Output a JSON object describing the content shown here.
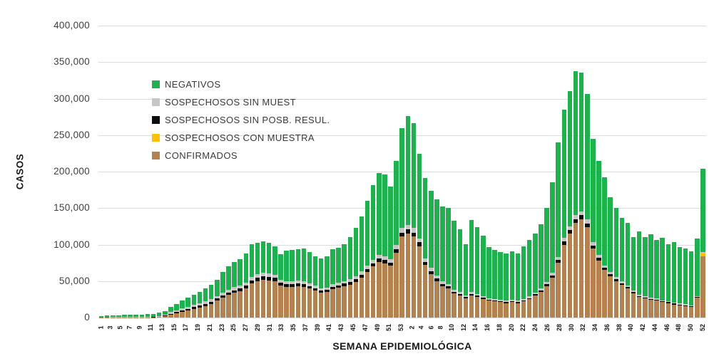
{
  "chart_data": {
    "type": "bar",
    "stacked": true,
    "title": "",
    "xlabel": "SEMANA EPIDEMIOLÓGICA",
    "ylabel": "CASOS",
    "ylim": [
      0,
      400000
    ],
    "grid": true,
    "legend_position": "upper-left-inside",
    "yticks": [
      {
        "label": "0",
        "value": 0
      },
      {
        "label": "50,000",
        "value": 50000
      },
      {
        "label": "100,000",
        "value": 100000
      },
      {
        "label": "150,000",
        "value": 150000
      },
      {
        "label": "200,000",
        "value": 200000
      },
      {
        "label": "250,000",
        "value": 250000
      },
      {
        "label": "300,000",
        "value": 300000
      },
      {
        "label": "350,000",
        "value": 350000
      },
      {
        "label": "400,000",
        "value": 400000
      }
    ],
    "categories": [
      "1",
      "",
      "3",
      "",
      "5",
      "",
      "7",
      "",
      "9",
      "",
      "11",
      "",
      "13",
      "",
      "15",
      "",
      "17",
      "",
      "19",
      "",
      "21",
      "",
      "23",
      "",
      "25",
      "",
      "27",
      "",
      "29",
      "",
      "31",
      "",
      "33",
      "",
      "35",
      "",
      "37",
      "",
      "39",
      "",
      "41",
      "",
      "43",
      "",
      "45",
      "",
      "47",
      "",
      "49",
      "",
      "51",
      "",
      "53",
      "",
      "2",
      "",
      "4",
      "",
      "6",
      "",
      "8",
      "",
      "10",
      "",
      "12",
      "",
      "14",
      "",
      "16",
      "",
      "18",
      "",
      "20",
      "",
      "22",
      "",
      "24",
      "",
      "26",
      "",
      "28",
      "",
      "30",
      "",
      "32",
      "",
      "34",
      "",
      "36",
      "",
      "38",
      "",
      "40",
      "",
      "42",
      "",
      "44",
      "",
      "46",
      "",
      "48",
      "",
      "50",
      "",
      "52"
    ],
    "series": [
      {
        "name": "CONFIRMADOS",
        "color": "#b4824e",
        "values": [
          100,
          100,
          200,
          200,
          200,
          200,
          200,
          300,
          300,
          400,
          600,
          2000,
          4000,
          6000,
          8000,
          10000,
          12000,
          14000,
          16000,
          19000,
          23000,
          27000,
          31000,
          34000,
          36000,
          40000,
          47000,
          50000,
          52000,
          51000,
          50000,
          44000,
          42000,
          42000,
          43000,
          42000,
          40000,
          37000,
          34000,
          35000,
          39000,
          41000,
          43000,
          45000,
          49000,
          55000,
          62000,
          70000,
          76000,
          74000,
          71000,
          89000,
          111000,
          115000,
          111000,
          98000,
          72000,
          60000,
          50000,
          43000,
          40000,
          33000,
          30000,
          26000,
          30000,
          28000,
          25000,
          23000,
          22000,
          21000,
          20000,
          21000,
          20000,
          22000,
          25000,
          30000,
          35000,
          43000,
          55000,
          75000,
          100000,
          115000,
          130000,
          135000,
          124000,
          95000,
          78000,
          65000,
          57000,
          50000,
          45000,
          40000,
          33000,
          28000,
          26000,
          24000,
          23000,
          21000,
          20000,
          18000,
          17000,
          16000,
          15000,
          27000,
          84000
        ]
      },
      {
        "name": "SOSPECHOSOS CON MUESTRA",
        "color": "#ffc000",
        "values": [
          0,
          0,
          0,
          0,
          0,
          0,
          0,
          0,
          0,
          0,
          0,
          0,
          0,
          0,
          0,
          0,
          0,
          0,
          0,
          0,
          0,
          0,
          0,
          0,
          0,
          0,
          0,
          0,
          0,
          0,
          0,
          0,
          0,
          0,
          0,
          0,
          0,
          0,
          0,
          0,
          0,
          0,
          0,
          0,
          0,
          0,
          0,
          0,
          0,
          0,
          0,
          0,
          0,
          0,
          0,
          0,
          0,
          0,
          0,
          0,
          0,
          0,
          0,
          0,
          0,
          0,
          0,
          0,
          0,
          0,
          0,
          0,
          0,
          0,
          0,
          0,
          0,
          0,
          0,
          0,
          0,
          0,
          0,
          0,
          0,
          0,
          0,
          0,
          0,
          0,
          0,
          0,
          0,
          0,
          0,
          0,
          0,
          0,
          0,
          0,
          0,
          0,
          0,
          0,
          3500
        ]
      },
      {
        "name": "SOSPECHOSOS SIN POSB. RESUL.",
        "color": "#0d0d0d",
        "values": [
          100,
          100,
          100,
          100,
          100,
          100,
          100,
          100,
          100,
          200,
          200,
          500,
          1200,
          1500,
          1800,
          2000,
          2200,
          2400,
          2600,
          2800,
          3000,
          3200,
          3400,
          3500,
          3600,
          3800,
          4200,
          4300,
          4400,
          4300,
          4200,
          3800,
          3700,
          3700,
          3700,
          3600,
          3400,
          3200,
          3000,
          3000,
          3200,
          3300,
          3400,
          3500,
          3700,
          3900,
          4200,
          4500,
          4700,
          4600,
          4400,
          5000,
          5500,
          5600,
          5500,
          5000,
          4300,
          3800,
          3400,
          3000,
          2900,
          2500,
          2300,
          2000,
          2300,
          2100,
          1900,
          1700,
          1600,
          1500,
          1400,
          1500,
          1400,
          1600,
          1800,
          2000,
          2200,
          2600,
          3000,
          3600,
          4200,
          4600,
          5000,
          5100,
          4800,
          4000,
          3500,
          3000,
          2700,
          2400,
          2200,
          2000,
          1800,
          1600,
          1500,
          1400,
          1300,
          1200,
          1200,
          1100,
          1000,
          1000,
          900,
          1200,
          800
        ]
      },
      {
        "name": "SOSPECHOSOS SIN MUEST",
        "color": "#c6c6c6",
        "values": [
          300,
          300,
          300,
          300,
          400,
          400,
          400,
          400,
          500,
          500,
          700,
          1000,
          2300,
          2500,
          2700,
          3000,
          3200,
          3300,
          3400,
          3500,
          3600,
          3800,
          4000,
          4100,
          4200,
          4400,
          4800,
          4900,
          5000,
          4900,
          4800,
          4300,
          4200,
          4200,
          4200,
          4100,
          3900,
          3600,
          3400,
          3400,
          3600,
          3700,
          3800,
          3900,
          4100,
          4300,
          4600,
          5000,
          5200,
          5100,
          4900,
          5500,
          6000,
          6100,
          6000,
          5500,
          4700,
          4200,
          3800,
          3400,
          3300,
          2900,
          2700,
          2400,
          2700,
          2500,
          2300,
          2100,
          2000,
          1900,
          1800,
          1900,
          1800,
          2000,
          2200,
          2400,
          2600,
          3000,
          3500,
          4100,
          4800,
          5200,
          5600,
          5700,
          5400,
          4500,
          4000,
          3500,
          3100,
          2800,
          2600,
          2400,
          2200,
          2000,
          1900,
          1800,
          1700,
          1600,
          1500,
          1400,
          1300,
          1200,
          1100,
          1500,
          1700
        ]
      },
      {
        "name": "NEGATIVOS",
        "color": "#1fb14e",
        "values": [
          1500,
          2000,
          2400,
          2400,
          2800,
          2800,
          2800,
          3200,
          3600,
          3900,
          5000,
          5500,
          7500,
          9000,
          10500,
          12000,
          13600,
          15300,
          18000,
          19700,
          22400,
          28000,
          31600,
          34400,
          36200,
          39800,
          45000,
          42800,
          42600,
          41800,
          39000,
          34900,
          42100,
          43100,
          43100,
          45300,
          42700,
          40200,
          40600,
          42600,
          48200,
          48000,
          50800,
          57600,
          66200,
          75800,
          89200,
          101500,
          112100,
          112300,
          99700,
          115500,
          137500,
          149300,
          143500,
          115500,
          110000,
          106000,
          104800,
          102600,
          103800,
          94600,
          86000,
          70600,
          99000,
          91400,
          82800,
          70200,
          67400,
          65600,
          64800,
          66600,
          64800,
          72400,
          77000,
          80600,
          88200,
          101400,
          123500,
          157300,
          176000,
          185200,
          197400,
          190200,
          171800,
          141500,
          129500,
          120500,
          102200,
          94800,
          87200,
          85600,
          73000,
          86400,
          80600,
          86800,
          80000,
          85200,
          78300,
          82500,
          77700,
          76800,
          74000,
          78300,
          114000
        ]
      }
    ],
    "legend": [
      {
        "label": "NEGATIVOS",
        "color": "#1fb14e"
      },
      {
        "label": "SOSPECHOSOS SIN MUEST",
        "color": "#c6c6c6"
      },
      {
        "label": "SOSPECHOSOS SIN POSB. RESUL.",
        "color": "#0d0d0d"
      },
      {
        "label": "SOSPECHOSOS CON MUESTRA",
        "color": "#ffc000"
      },
      {
        "label": "CONFIRMADOS",
        "color": "#b4824e"
      }
    ]
  },
  "layout_colors": {
    "gridline": "#dcdcdc",
    "background": "#ffffff"
  }
}
